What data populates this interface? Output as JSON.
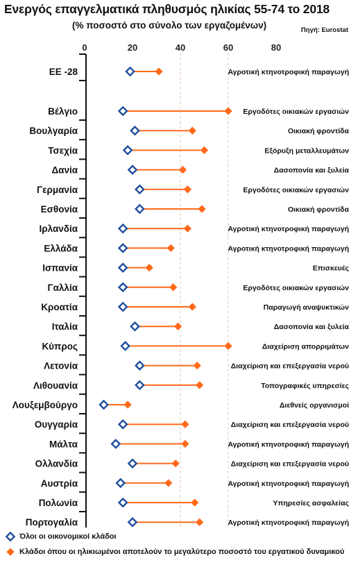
{
  "header": {
    "title": "Ενεργός επαγγελματικά πληθυσμός ηλικίας 55-74 το 2018",
    "subtitle": "(% ποσοστό στο σύνολο των εργαζομένων)",
    "source": "Πηγή: Eurostat"
  },
  "colors": {
    "all_sectors": "#1f4e9c",
    "top_sector": "#ff6a1a",
    "axis": "#111111",
    "gridline": "#e8c9b4"
  },
  "legend": {
    "all_sectors": "Όλοι οι οικονομικοί κλάδοι",
    "top_sector": "Κλάδοι όπου οι ηλικιωμένοι αποτελούν το μεγαλύτερο ποσοστό του εργατικού δυναμικού"
  },
  "chart_data": {
    "type": "dot-plot",
    "title": "Ενεργός επαγγελματικά πληθυσμός ηλικίας 55-74 το 2018",
    "subtitle": "(% ποσοστό στο σύνολο των εργαζομένων)",
    "xlim": [
      0,
      80
    ],
    "xticks": [
      "0",
      "20",
      "40",
      "60",
      "80"
    ],
    "gridlines": [
      40,
      60
    ],
    "legend_position": "bottom",
    "series": [
      {
        "name": "Όλοι οι οικονομικοί κλάδοι",
        "marker": "diamond-hollow",
        "values": [
          19,
          16,
          21,
          18,
          20,
          23,
          23,
          16,
          16,
          16,
          16,
          16,
          21,
          17,
          23,
          23,
          8,
          16,
          13,
          20,
          15,
          16,
          20
        ]
      },
      {
        "name": "Κλάδοι όπου οι ηλικιωμένοι αποτελούν το μεγαλύτερο ποσοστό του εργατικού δυναμικού",
        "marker": "diamond-filled",
        "values": [
          31,
          60,
          45,
          50,
          41,
          43,
          49,
          43,
          36,
          27,
          37,
          45,
          39,
          60,
          47,
          48,
          18,
          42,
          42,
          38,
          35,
          46,
          48
        ]
      }
    ],
    "rows": [
      {
        "country": "ΕΕ -28",
        "sector": "Αγροτική κτηνοτροφική παραγωγή"
      },
      {
        "country": "Βέλγιο",
        "sector": "Εργοδότες οικιακών εργασιών"
      },
      {
        "country": "Βουλγαρία",
        "sector": "Οικιακή φροντίδα"
      },
      {
        "country": "Τσεχία",
        "sector": "Εξόρυξη μεταλλευμάτων"
      },
      {
        "country": "Δανία",
        "sector": "Δασοπονία και ξυλεία"
      },
      {
        "country": "Γερμανία",
        "sector": "Εργοδότες οικιακών εργασιών"
      },
      {
        "country": "Εσθονία",
        "sector": "Οικιακή φροντίδα"
      },
      {
        "country": "Ιρλανδία",
        "sector": "Αγροτική κτηνοτροφική παραγωγή"
      },
      {
        "country": "Ελλάδα",
        "sector": "Αγροτική κτηνοτροφική παραγωγή"
      },
      {
        "country": "Ισπανία",
        "sector": "Επισκευές"
      },
      {
        "country": "Γαλλία",
        "sector": "Εργοδότες οικιακών εργασιών"
      },
      {
        "country": "Κροατία",
        "sector": "Παραγωγή αναψυκτικών"
      },
      {
        "country": "Ιταλία",
        "sector": "Δασοπονία και ξυλεία"
      },
      {
        "country": "Κύπρος",
        "sector": "Διαχείριση απορριμάτων"
      },
      {
        "country": "Λετονία",
        "sector": "Διαχείριση και επεξεργασία νερού"
      },
      {
        "country": "Λιθουανία",
        "sector": "Τοπογραφικές υπηρεσίες"
      },
      {
        "country": "Λουξεμβούργο",
        "sector": "Διεθνείς οργανισμοί"
      },
      {
        "country": "Ουγγαρία",
        "sector": "Διαχείριση και επεξεργασία νερού"
      },
      {
        "country": "Μάλτα",
        "sector": "Αγροτική κτηνοτροφική παραγωγή"
      },
      {
        "country": "Ολλανδία",
        "sector": "Διαχείριση και επεξεργασία νερού"
      },
      {
        "country": "Αυστρία",
        "sector": "Αγροτική κτηνοτροφική παραγωγή"
      },
      {
        "country": "Πολωνία",
        "sector": "Υπηρεσίες ασφαλείας"
      },
      {
        "country": "Πορτογαλία",
        "sector": "Αγροτική κτηνοτροφική παραγωγή"
      }
    ]
  }
}
